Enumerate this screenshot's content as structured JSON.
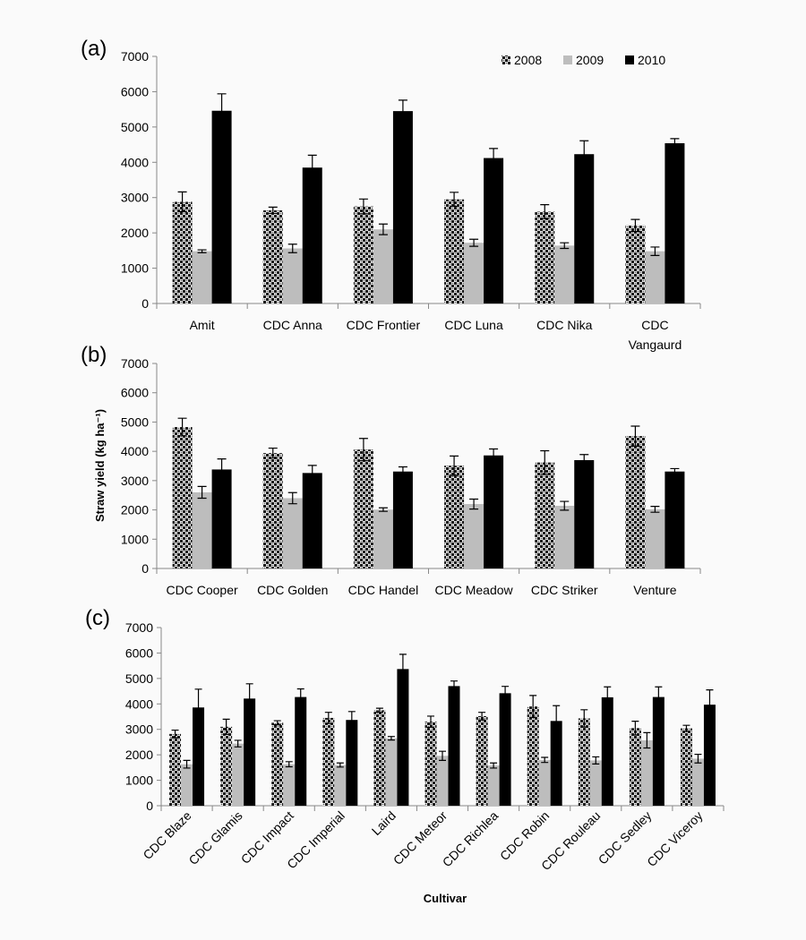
{
  "figure": {
    "ylabel": "Straw yield (kg ha⁻¹)",
    "xlabel": "Cultivar"
  },
  "legend": [
    "2008",
    "2009",
    "2010"
  ],
  "colors": {
    "y2008": "#1a1a1a",
    "y2009": "#bdbdbd",
    "y2010": "#000000",
    "axis": "#888888"
  },
  "chart_data": [
    {
      "type": "bar",
      "panel_label": "(a)",
      "ylim": [
        0,
        7000
      ],
      "yticks": [
        0,
        1000,
        2000,
        3000,
        4000,
        5000,
        6000,
        7000
      ],
      "categories": [
        "Amit",
        "CDC Anna",
        "CDC Frontier",
        "CDC Luna",
        "CDC Nika",
        "CDC Vangaurd"
      ],
      "series": [
        {
          "name": "2008",
          "values": [
            2880,
            2640,
            2750,
            2950,
            2600,
            2210
          ],
          "errors": [
            280,
            90,
            210,
            200,
            200,
            170
          ]
        },
        {
          "name": "2009",
          "values": [
            1480,
            1560,
            2100,
            1720,
            1640,
            1480
          ],
          "errors": [
            40,
            120,
            150,
            100,
            80,
            120
          ]
        },
        {
          "name": "2010",
          "values": [
            5460,
            3850,
            5450,
            4120,
            4230,
            4540
          ],
          "errors": [
            480,
            350,
            310,
            270,
            380,
            130
          ]
        }
      ]
    },
    {
      "type": "bar",
      "panel_label": "(b)",
      "ylim": [
        0,
        7000
      ],
      "yticks": [
        0,
        1000,
        2000,
        3000,
        4000,
        5000,
        6000,
        7000
      ],
      "categories": [
        "CDC Cooper",
        "CDC Golden",
        "CDC Handel",
        "CDC Meadow",
        "CDC Striker",
        "Venture"
      ],
      "series": [
        {
          "name": "2008",
          "values": [
            4830,
            3940,
            4060,
            3510,
            3620,
            4520
          ],
          "errors": [
            300,
            170,
            380,
            330,
            400,
            340
          ]
        },
        {
          "name": "2009",
          "values": [
            2600,
            2400,
            2010,
            2200,
            2140,
            2020
          ],
          "errors": [
            200,
            190,
            60,
            170,
            150,
            100
          ]
        },
        {
          "name": "2010",
          "values": [
            3380,
            3260,
            3310,
            3860,
            3700,
            3310
          ],
          "errors": [
            360,
            260,
            160,
            220,
            190,
            100
          ]
        }
      ]
    },
    {
      "type": "bar",
      "panel_label": "(c)",
      "ylim": [
        0,
        7000
      ],
      "yticks": [
        0,
        1000,
        2000,
        3000,
        4000,
        5000,
        6000,
        7000
      ],
      "categories": [
        "CDC Blaze",
        "CDC Glamis",
        "CDC Impact",
        "CDC Imperial",
        "Laird",
        "CDC Meteor",
        "CDC Richlea",
        "CDC Robin",
        "CDC Rouleau",
        "CDC Sedley",
        "CDC Viceroy"
      ],
      "series": [
        {
          "name": "2008",
          "values": [
            2820,
            3100,
            3260,
            3450,
            3750,
            3300,
            3520,
            3900,
            3430,
            3050,
            3040
          ],
          "errors": [
            150,
            300,
            80,
            220,
            80,
            220,
            150,
            430,
            340,
            270,
            120
          ]
        },
        {
          "name": "2009",
          "values": [
            1630,
            2440,
            1630,
            1600,
            2650,
            1960,
            1580,
            1800,
            1780,
            2570,
            1850
          ],
          "errors": [
            150,
            130,
            100,
            80,
            70,
            180,
            100,
            100,
            140,
            300,
            170
          ]
        },
        {
          "name": "2010",
          "values": [
            3860,
            4210,
            4270,
            3370,
            5370,
            4700,
            4420,
            3330,
            4260,
            4270,
            3970
          ],
          "errors": [
            720,
            580,
            320,
            330,
            580,
            200,
            270,
            600,
            410,
            400,
            580
          ]
        }
      ]
    }
  ]
}
